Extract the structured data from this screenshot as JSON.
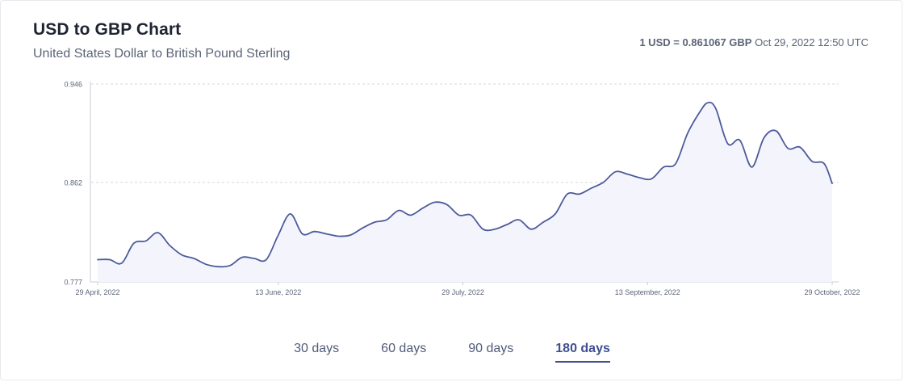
{
  "header": {
    "title": "USD to GBP Chart",
    "subtitle": "United States Dollar to British Pound Sterling",
    "rate_strong": "1 USD = 0.861067 GBP",
    "rate_time": "Oct 29, 2022 12:50 UTC"
  },
  "tabs": [
    {
      "label": "30 days",
      "active": false
    },
    {
      "label": "60 days",
      "active": false
    },
    {
      "label": "90 days",
      "active": false
    },
    {
      "label": "180 days",
      "active": true
    }
  ],
  "colors": {
    "line": "#4d5a9c",
    "fill": "#f4f5fc",
    "grid": "#d4d7de",
    "axis": "#c9ccd4",
    "tick_text": "#5b6478"
  },
  "chart_data": {
    "type": "area",
    "title": "USD to GBP Chart",
    "subtitle": "United States Dollar to British Pound Sterling",
    "x_ticks": [
      "29 April, 2022",
      "13 June, 2022",
      "29 July, 2022",
      "13 September, 2022",
      "29 October, 2022"
    ],
    "y_ticks": [
      0.777,
      0.862,
      0.946
    ],
    "ylim": [
      0.777,
      0.946
    ],
    "grid": "horizontal-dashed",
    "series": [
      {
        "x": [
          "2022-04-29",
          "2022-05-02",
          "2022-05-05",
          "2022-05-08",
          "2022-05-11",
          "2022-05-14",
          "2022-05-17",
          "2022-05-20",
          "2022-05-23",
          "2022-05-26",
          "2022-05-29",
          "2022-06-01",
          "2022-06-04",
          "2022-06-07",
          "2022-06-10",
          "2022-06-13",
          "2022-06-16",
          "2022-06-19",
          "2022-06-22",
          "2022-06-25",
          "2022-06-28",
          "2022-07-01",
          "2022-07-04",
          "2022-07-07",
          "2022-07-10",
          "2022-07-13",
          "2022-07-16",
          "2022-07-19",
          "2022-07-22",
          "2022-07-25",
          "2022-07-28",
          "2022-07-31",
          "2022-08-03",
          "2022-08-06",
          "2022-08-09",
          "2022-08-12",
          "2022-08-15",
          "2022-08-18",
          "2022-08-21",
          "2022-08-24",
          "2022-08-27",
          "2022-08-30",
          "2022-09-02",
          "2022-09-05",
          "2022-09-08",
          "2022-09-11",
          "2022-09-14",
          "2022-09-17",
          "2022-09-20",
          "2022-09-23",
          "2022-09-26",
          "2022-09-28",
          "2022-09-30",
          "2022-10-03",
          "2022-10-06",
          "2022-10-09",
          "2022-10-12",
          "2022-10-15",
          "2022-10-18",
          "2022-10-21",
          "2022-10-24",
          "2022-10-27",
          "2022-10-29"
        ],
        "y": [
          0.796,
          0.796,
          0.793,
          0.81,
          0.812,
          0.819,
          0.808,
          0.8,
          0.797,
          0.792,
          0.79,
          0.791,
          0.798,
          0.797,
          0.796,
          0.817,
          0.835,
          0.818,
          0.82,
          0.818,
          0.816,
          0.817,
          0.823,
          0.828,
          0.83,
          0.838,
          0.834,
          0.84,
          0.845,
          0.843,
          0.834,
          0.834,
          0.822,
          0.822,
          0.826,
          0.83,
          0.822,
          0.828,
          0.835,
          0.852,
          0.852,
          0.857,
          0.862,
          0.871,
          0.869,
          0.866,
          0.865,
          0.875,
          0.878,
          0.904,
          0.922,
          0.93,
          0.925,
          0.895,
          0.898,
          0.875,
          0.9,
          0.906,
          0.891,
          0.892,
          0.88,
          0.878,
          0.861
        ]
      }
    ]
  }
}
